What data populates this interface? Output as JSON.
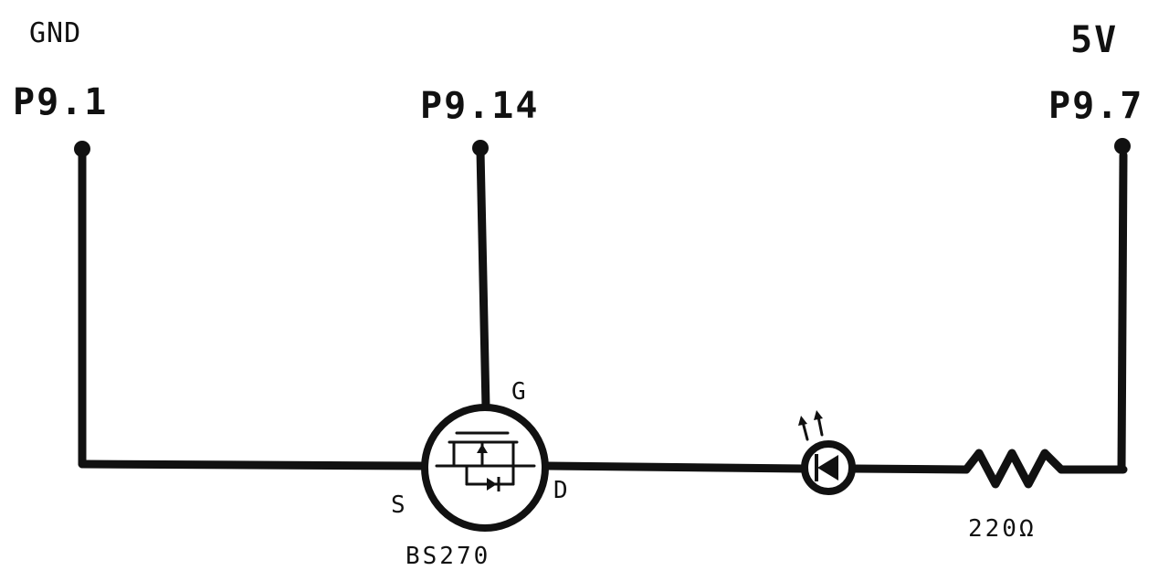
{
  "pins": {
    "gnd": {
      "net": "GND",
      "pin": "P9.1"
    },
    "gate": {
      "pin": "P9.14"
    },
    "vcc": {
      "net": "5V",
      "pin": "P9.7"
    }
  },
  "transistor": {
    "part": "BS270",
    "gate_label": "G",
    "source_label": "S",
    "drain_label": "D"
  },
  "resistor": {
    "value": "220Ω"
  },
  "colors": {
    "ink": "#111111",
    "paper": "#ffffff"
  }
}
